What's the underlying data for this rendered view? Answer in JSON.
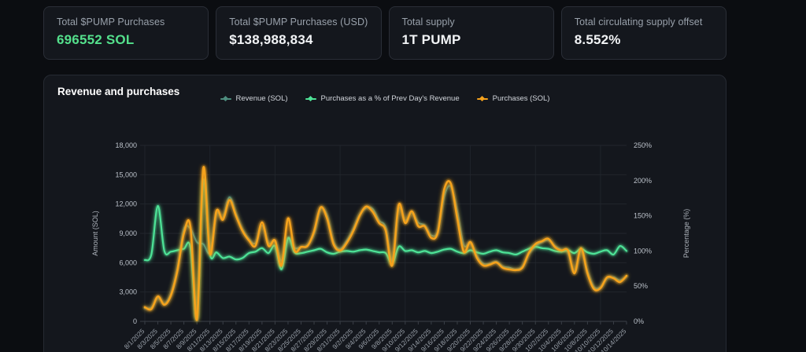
{
  "stat_cards": [
    {
      "label": "Total $PUMP Purchases",
      "value": "696552 SOL",
      "value_color": "#54e08c"
    },
    {
      "label": "Total $PUMP Purchases (USD)",
      "value": "$138,988,834"
    },
    {
      "label": "Total supply",
      "value": "1T PUMP"
    },
    {
      "label": "Total circulating supply offset",
      "value": "8.552%"
    }
  ],
  "chart_data": {
    "type": "line",
    "title": "Revenue and purchases",
    "legend_position": "top-center",
    "grid": true,
    "x_start": "8/1/2025",
    "x_end": "10/14/2025",
    "x_interval_days": 1,
    "x_tick_every_days": 2,
    "x_gridline_every_days": 10,
    "x_tick_labels": [
      "8/1/2025",
      "8/3/2025",
      "8/5/2025",
      "8/7/2025",
      "8/9/2025",
      "8/11/2025",
      "8/13/2025",
      "8/15/2025",
      "8/17/2025",
      "8/19/2025",
      "8/21/2025",
      "8/23/2025",
      "8/25/2025",
      "8/27/2025",
      "8/29/2025",
      "8/31/2025",
      "9/2/2025",
      "9/4/2025",
      "9/6/2025",
      "9/8/2025",
      "9/10/2025",
      "9/12/2025",
      "9/14/2025",
      "9/16/2025",
      "9/18/2025",
      "9/20/2025",
      "9/22/2025",
      "9/24/2025",
      "9/26/2025",
      "9/28/2025",
      "9/30/2025",
      "10/2/2025",
      "10/4/2025",
      "10/6/2025",
      "10/8/2025",
      "10/10/2025",
      "10/12/2025",
      "10/14/2025"
    ],
    "left_axis": {
      "label": "Amount (SOL)",
      "min": 0,
      "max": 18000,
      "tick_step": 3000,
      "tick_labels": [
        "0",
        "3,000",
        "6,000",
        "9,000",
        "12,000",
        "15,000",
        "18,000"
      ]
    },
    "right_axis": {
      "label": "Percentage (%)",
      "min": 0,
      "max": 250,
      "tick_step": 50,
      "tick_labels": [
        "0%",
        "50%",
        "100%",
        "150%",
        "200%",
        "250%"
      ]
    },
    "series": [
      {
        "name": "Revenue (SOL)",
        "axis": "left",
        "color": "#4e8e7f",
        "width": 2,
        "values": [
          1350,
          1400,
          2400,
          1800,
          2800,
          5400,
          9400,
          9500,
          8100,
          7900,
          7100,
          11000,
          10600,
          12700,
          11000,
          9400,
          8400,
          8000,
          9800,
          8000,
          8100,
          6200,
          8530,
          7500,
          7600,
          7800,
          9000,
          11500,
          10800,
          8100,
          7400,
          8200,
          9400,
          10900,
          11600,
          11500,
          10300,
          9600,
          6200,
          11500,
          10300,
          11100,
          10100,
          9800,
          8800,
          9200,
          12800,
          13800,
          11200,
          7800,
          8000,
          6700,
          5900,
          5900,
          6100,
          5600,
          5500,
          5300,
          5600,
          6900,
          7700,
          8100,
          8300,
          7700,
          7300,
          7100,
          5100,
          7300,
          5100,
          3500,
          3500,
          4400,
          4500,
          4200,
          4600
        ]
      },
      {
        "name": "Purchases as a % of Prev Day's Revenue",
        "axis": "right",
        "color": "#4ee397",
        "width": 2.2,
        "values": [
          87,
          95,
          164,
          100,
          99,
          101,
          103,
          105,
          3,
          200,
          96,
          98,
          90,
          92,
          88,
          90,
          97,
          99,
          104,
          97,
          107,
          74,
          118,
          98,
          97,
          99,
          101,
          103,
          98,
          96,
          99,
          100,
          99,
          101,
          102,
          100,
          98,
          97,
          82,
          106,
          100,
          101,
          98,
          100,
          97,
          99,
          102,
          103,
          99,
          97,
          101,
          98,
          96,
          99,
          101,
          98,
          97,
          95,
          99,
          103,
          106,
          104,
          103,
          100,
          99,
          101,
          97,
          103,
          98,
          96,
          99,
          101,
          95,
          107,
          100
        ]
      },
      {
        "name": "Purchases (SOL)",
        "axis": "left",
        "color": "#f5a21d",
        "width": 2.6,
        "values": [
          1450,
          1250,
          2550,
          1700,
          2650,
          5200,
          9000,
          9700,
          150,
          15700,
          6900,
          11300,
          10400,
          12400,
          10800,
          9250,
          8280,
          7720,
          10130,
          7720,
          8280,
          5710,
          10530,
          7240,
          7600,
          7720,
          9200,
          11660,
          10500,
          7880,
          7240,
          8000,
          9200,
          10800,
          11740,
          11200,
          10050,
          9300,
          5710,
          11900,
          10050,
          11260,
          9730,
          9730,
          8530,
          9100,
          13500,
          14100,
          10530,
          7100,
          8120,
          6510,
          5710,
          5800,
          6030,
          5470,
          5310,
          5250,
          5500,
          7000,
          7900,
          8200,
          8440,
          7600,
          7240,
          7240,
          4900,
          7480,
          4900,
          3300,
          3400,
          4500,
          4400,
          4020,
          4660
        ]
      }
    ]
  }
}
